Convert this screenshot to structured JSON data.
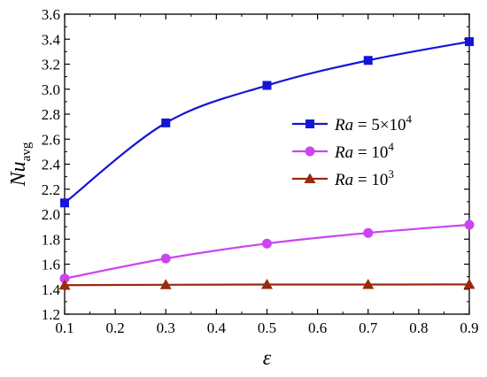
{
  "chart_data": {
    "type": "line",
    "xlabel": "ε",
    "ylabel": {
      "main": "Nu",
      "sub": "avg"
    },
    "xlim": [
      0.1,
      0.9
    ],
    "ylim": [
      1.2,
      3.6
    ],
    "xticks": [
      "0.1",
      "0.2",
      "0.3",
      "0.4",
      "0.5",
      "0.6",
      "0.7",
      "0.8",
      "0.9"
    ],
    "yticks": [
      "1.2",
      "1.4",
      "1.6",
      "1.8",
      "2.0",
      "2.2",
      "2.4",
      "2.6",
      "2.8",
      "3.0",
      "3.2",
      "3.4",
      "3.6"
    ],
    "grid": false,
    "legend_position": "center-right",
    "x": [
      0.1,
      0.3,
      0.5,
      0.7,
      0.9
    ],
    "series": [
      {
        "name_parts": [
          "Ra",
          " = 5×10",
          "4"
        ],
        "marker": "square",
        "color": "#1515d6",
        "values": [
          2.09,
          2.73,
          3.03,
          3.23,
          3.38
        ]
      },
      {
        "name_parts": [
          "Ra",
          " = 10",
          "4"
        ],
        "marker": "circle",
        "color": "#cc44ee",
        "values": [
          1.485,
          1.645,
          1.765,
          1.85,
          1.915
        ]
      },
      {
        "name_parts": [
          "Ra",
          " = 10",
          "3"
        ],
        "marker": "triangle",
        "color": "#9a2a0a",
        "values": [
          1.432,
          1.435,
          1.437,
          1.437,
          1.438
        ]
      }
    ]
  }
}
